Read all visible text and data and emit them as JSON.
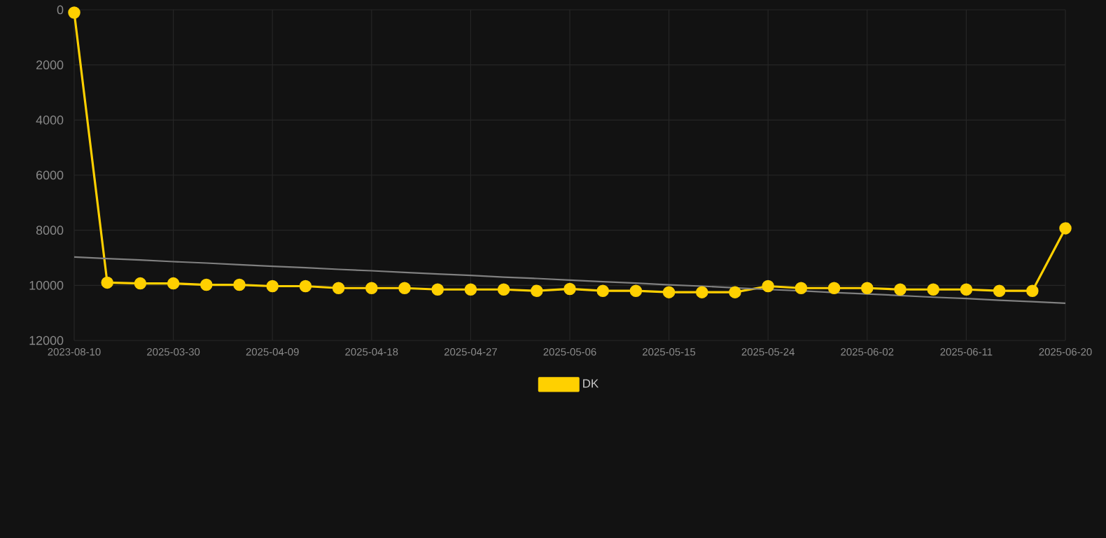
{
  "chart_data": {
    "type": "line",
    "categories": [
      "2023-08-10",
      null,
      null,
      "2025-03-30",
      null,
      null,
      "2025-04-09",
      null,
      null,
      "2025-04-18",
      null,
      null,
      "2025-04-27",
      null,
      null,
      "2025-05-06",
      null,
      null,
      "2025-05-15",
      null,
      null,
      "2025-05-24",
      null,
      null,
      "2025-06-02",
      null,
      null,
      "2025-06-11",
      null,
      null,
      "2025-06-20"
    ],
    "series": [
      {
        "name": "DK",
        "color": "#ffd000",
        "marker": "circle",
        "values": [
          100,
          9900,
          9930,
          9930,
          9980,
          9980,
          10030,
          10030,
          10100,
          10100,
          10100,
          10150,
          10150,
          10150,
          10200,
          10130,
          10200,
          10200,
          10250,
          10250,
          10250,
          10030,
          10100,
          10100,
          10100,
          10150,
          10150,
          10150,
          10200,
          10200,
          7930
        ]
      },
      {
        "type": "line",
        "color": "#808080",
        "marker": "none",
        "values": [
          8970,
          9030,
          9080,
          9140,
          9190,
          9250,
          9310,
          9360,
          9420,
          9470,
          9530,
          9590,
          9640,
          9700,
          9750,
          9810,
          9870,
          9920,
          9980,
          10030,
          10090,
          10150,
          10200,
          10260,
          10310,
          10370,
          10430,
          10480,
          10540,
          10590,
          10650
        ]
      }
    ],
    "ylim": [
      12000,
      0
    ],
    "yticks": [
      0,
      2000,
      4000,
      6000,
      8000,
      10000,
      12000
    ],
    "grid": true,
    "legend": "bottom"
  }
}
